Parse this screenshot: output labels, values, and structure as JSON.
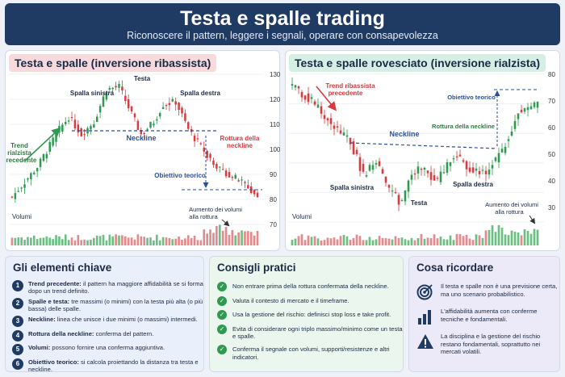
{
  "header": {
    "title": "Testa e spalle trading",
    "subtitle": "Riconoscere il pattern, leggere i segnali, operare con consapevolezza"
  },
  "left_panel": {
    "title": "Testa e spalle (inversione ribassista)",
    "labels": {
      "trend": [
        "Trend",
        "rialzista",
        "precedente"
      ],
      "left_shoulder": "Spalla sinistra",
      "head": "Testa",
      "right_shoulder": "Spalla destra",
      "neckline": "Neckline",
      "breakout": [
        "Rottura della",
        "neckline"
      ],
      "target": "Obiettivo teorico",
      "volume_note": [
        "Aumento dei volumi",
        "alla rottura"
      ],
      "volume": "Volumi"
    },
    "axis_ticks": [
      "130",
      "120",
      "110",
      "100",
      "90",
      "80",
      "70"
    ]
  },
  "right_panel": {
    "title": "Testa e spalle rovesciato (inversione rialzista)",
    "labels": {
      "trend": [
        "Trend ribassista",
        "precedente"
      ],
      "neckline": "Neckline",
      "breakout": "Rottura della neckline",
      "target": "Obiettivo teorico",
      "left_shoulder": "Spalla sinistra",
      "head": "Testa",
      "right_shoulder": "Spalla destra",
      "volume_note": [
        "Aumento dei volumi",
        "alla rottura"
      ],
      "volume": "Volumi"
    },
    "axis_ticks": [
      "80",
      "70",
      "60",
      "50",
      "40",
      "30"
    ]
  },
  "chart_data": [
    {
      "type": "candlestick",
      "title": "Testa e spalle (inversione ribassista)",
      "y_ticks": [
        130,
        120,
        110,
        100,
        90,
        80,
        70
      ],
      "path_points": [
        [
          0,
          81
        ],
        [
          8,
          93
        ],
        [
          15,
          108
        ],
        [
          18,
          113
        ],
        [
          22,
          106
        ],
        [
          26,
          111
        ],
        [
          30,
          124
        ],
        [
          34,
          125
        ],
        [
          38,
          114
        ],
        [
          41,
          106
        ],
        [
          45,
          111
        ],
        [
          48,
          118
        ],
        [
          52,
          119
        ],
        [
          56,
          108
        ],
        [
          60,
          101
        ],
        [
          66,
          92
        ],
        [
          73,
          87
        ],
        [
          78,
          81
        ]
      ],
      "neckline": 107,
      "target": 83,
      "colors": {
        "up": "#2f9a4f",
        "down": "#d83a3f"
      }
    },
    {
      "type": "candlestick",
      "title": "Testa e spalle rovesciato (inversione rialzista)",
      "y_ticks": [
        80,
        70,
        60,
        50,
        40,
        30
      ],
      "path_points": [
        [
          0,
          76
        ],
        [
          6,
          71
        ],
        [
          12,
          63
        ],
        [
          18,
          57
        ],
        [
          22,
          46
        ],
        [
          26,
          51
        ],
        [
          30,
          41
        ],
        [
          34,
          36
        ],
        [
          37,
          47
        ],
        [
          40,
          48
        ],
        [
          45,
          44
        ],
        [
          50,
          53
        ],
        [
          55,
          48
        ],
        [
          60,
          47
        ],
        [
          65,
          54
        ],
        [
          70,
          67
        ],
        [
          76,
          70
        ]
      ],
      "neckline": 53,
      "target": 75,
      "colors": {
        "up": "#2f9a4f",
        "down": "#d83a3f"
      }
    }
  ],
  "key_elements": {
    "title": "Gli elementi chiave",
    "items": [
      {
        "n": "1",
        "term": "Trend precedente:",
        "text": "il pattern ha maggiore affidabilità se si forma dopo un trend definito."
      },
      {
        "n": "2",
        "term": "Spalle e testa:",
        "text": "tre massimi (o minimi) con la testa più alta (o più bassa) delle spalle."
      },
      {
        "n": "3",
        "term": "Neckline:",
        "text": "linea che unisce i due minimi (o massimi) intermedi."
      },
      {
        "n": "4",
        "term": "Rottura della neckline:",
        "text": "conferma del pattern."
      },
      {
        "n": "5",
        "term": "Volumi:",
        "text": "possono fornire una conferma aggiuntiva."
      },
      {
        "n": "6",
        "term": "Obiettivo teorico:",
        "text": "si calcola proiettando la distanza tra testa e neckline."
      }
    ]
  },
  "tips": {
    "title": "Consigli pratici",
    "items": [
      "Non entrare prima della rottura confermata della neckline.",
      "Valuta il contesto di mercato e il timeframe.",
      "Usa la gestione del rischio: definisci stop loss e take profit.",
      "Evita di considerare ogni triplo massimo/minimo come un testa e spalle.",
      "Conferma il segnale con volumi, supporti/resistenze e altri indicatori."
    ]
  },
  "remember": {
    "title": "Cosa ricordare",
    "items": [
      {
        "icon": "target-icon",
        "text": "Il testa e spalle non è una previsione certa, ma uno scenario probabilistico."
      },
      {
        "icon": "bar-chart-icon",
        "text": "L'affidabilità aumenta con conferme tecniche e fondamentali."
      },
      {
        "icon": "warning-icon",
        "text": "La disciplina e la gestione del rischio restano fondamentali, soprattutto nei mercati volatili."
      }
    ]
  }
}
